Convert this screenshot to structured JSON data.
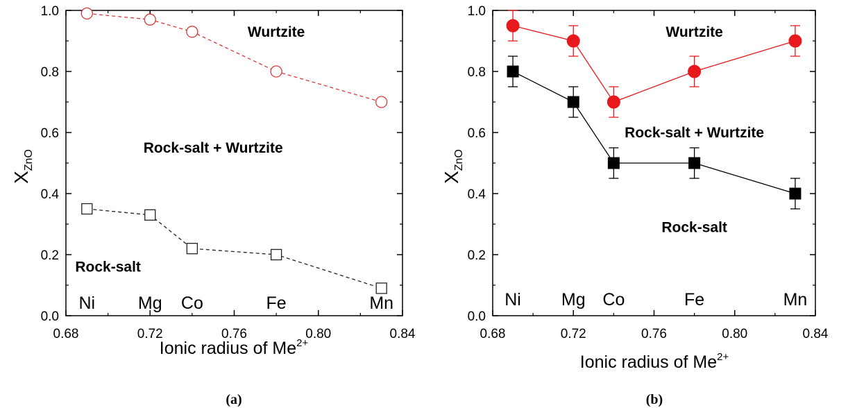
{
  "chart_data": [
    {
      "panel_label": "(a)",
      "type": "line",
      "xlabel_main": "Ionic radius of Me",
      "xlabel_sup": "2+",
      "ylabel_main": "X",
      "ylabel_sub": "ZnO",
      "xlim": [
        0.68,
        0.84
      ],
      "ylim": [
        0.0,
        1.0
      ],
      "xticks": [
        "0.68",
        "0.72",
        "0.76",
        "0.80",
        "0.84"
      ],
      "yticks": [
        "0.0",
        "0.2",
        "0.4",
        "0.6",
        "0.8",
        "1.0"
      ],
      "element_labels": [
        {
          "text": "Ni",
          "x": 0.69
        },
        {
          "text": "Mg",
          "x": 0.72
        },
        {
          "text": "Co",
          "x": 0.74
        },
        {
          "text": "Fe",
          "x": 0.78
        },
        {
          "text": "Mn",
          "x": 0.83
        }
      ],
      "region_labels": [
        {
          "text": "Wurtzite",
          "x": 0.78,
          "y": 0.93
        },
        {
          "text": "Rock-salt + Wurtzite",
          "x": 0.75,
          "y": 0.55
        },
        {
          "text": "Rock-salt",
          "x": 0.7,
          "y": 0.16
        }
      ],
      "series": [
        {
          "style": "dashed",
          "marker": "open-circle",
          "color": "#d9383a",
          "x": [
            0.69,
            0.72,
            0.74,
            0.78,
            0.83
          ],
          "y": [
            0.99,
            0.97,
            0.93,
            0.8,
            0.7
          ]
        },
        {
          "style": "dashed",
          "marker": "open-square",
          "color": "#222222",
          "x": [
            0.69,
            0.72,
            0.74,
            0.78,
            0.83
          ],
          "y": [
            0.35,
            0.33,
            0.22,
            0.2,
            0.09
          ]
        }
      ]
    },
    {
      "panel_label": "(b)",
      "type": "line",
      "xlabel_main": "Ionic radius of Me",
      "xlabel_sup": "2+",
      "ylabel_main": "X",
      "ylabel_sub": "ZnO",
      "xlim": [
        0.68,
        0.84
      ],
      "ylim": [
        0.0,
        1.0
      ],
      "xticks": [
        "0.68",
        "0.72",
        "0.76",
        "0.80",
        "0.84"
      ],
      "yticks": [
        "0.0",
        "0.2",
        "0.4",
        "0.6",
        "0.8",
        "1.0"
      ],
      "element_labels": [
        {
          "text": "Ni",
          "x": 0.69
        },
        {
          "text": "Mg",
          "x": 0.72
        },
        {
          "text": "Co",
          "x": 0.74
        },
        {
          "text": "Fe",
          "x": 0.78
        },
        {
          "text": "Mn",
          "x": 0.83
        }
      ],
      "region_labels": [
        {
          "text": "Wurtzite",
          "x": 0.78,
          "y": 0.93
        },
        {
          "text": "Rock-salt + Wurtzite",
          "x": 0.78,
          "y": 0.6
        },
        {
          "text": "Rock-salt",
          "x": 0.78,
          "y": 0.29
        }
      ],
      "series": [
        {
          "style": "solid",
          "marker": "filled-circle",
          "color": "#e8191c",
          "x": [
            0.69,
            0.72,
            0.74,
            0.78,
            0.83
          ],
          "y": [
            0.95,
            0.9,
            0.7,
            0.8,
            0.9
          ],
          "err": [
            0.05,
            0.05,
            0.05,
            0.05,
            0.05
          ]
        },
        {
          "style": "solid",
          "marker": "filled-square",
          "color": "#000000",
          "x": [
            0.69,
            0.72,
            0.74,
            0.78,
            0.83
          ],
          "y": [
            0.8,
            0.7,
            0.5,
            0.5,
            0.4
          ],
          "err": [
            0.05,
            0.05,
            0.05,
            0.05,
            0.05
          ]
        }
      ]
    }
  ]
}
